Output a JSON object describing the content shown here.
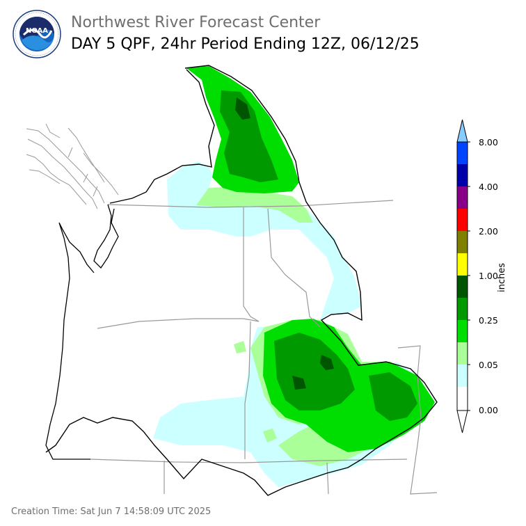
{
  "header": {
    "agency": "Northwest River Forecast Center",
    "product": "DAY 5 QPF, 24hr Period Ending 12Z, 06/12/25"
  },
  "logo": {
    "icon": "noaa-logo-icon",
    "text": "NOAA",
    "ring_text": "NATIONAL OCEANIC AND ATMOSPHERIC ADMINISTRATION · U.S. DEPARTMENT OF COMMERCE"
  },
  "legend": {
    "unit": "inches",
    "ticks": [
      "8.00",
      "4.00",
      "2.00",
      "1.00",
      "0.25",
      "0.05",
      "0.00"
    ],
    "colors": [
      "#ffffff",
      "#ccffff",
      "#aaff99",
      "#00dd00",
      "#009900",
      "#005500",
      "#ffff00",
      "#808000",
      "#ff0000",
      "#880088",
      "#0000aa",
      "#0044ff",
      "#88ccff"
    ],
    "empty_color": "#ffffff"
  },
  "footer": {
    "creation_time": "Creation Time: Sat Jun 7 14:58:09 UTC 2025"
  }
}
